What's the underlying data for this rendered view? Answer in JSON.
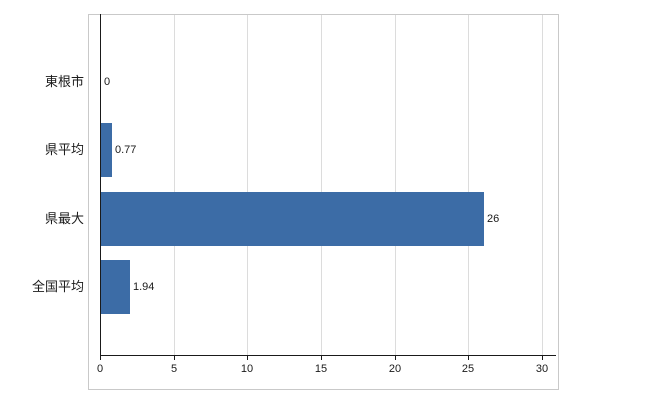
{
  "chart_data": {
    "type": "bar",
    "orientation": "horizontal",
    "title": "",
    "xlabel": "",
    "ylabel": "",
    "categories": [
      "東根市",
      "県平均",
      "県最大",
      "全国平均"
    ],
    "values": [
      0,
      0.77,
      26,
      1.94
    ],
    "value_labels": [
      "0",
      "0.77",
      "26",
      "1.94"
    ],
    "xlim": [
      0,
      30
    ],
    "xticks": [
      0,
      5,
      10,
      15,
      20,
      25,
      30
    ],
    "xtick_labels": [
      "0",
      "5",
      "10",
      "15",
      "20",
      "25",
      "30"
    ],
    "grid": true,
    "legend": "none",
    "bar_color": "#3c6ca6",
    "axis_color": "#1a1a1a",
    "grid_color": "#dcdcdc",
    "border_color": "#c9c9c9",
    "background_color": "#ffffff"
  }
}
